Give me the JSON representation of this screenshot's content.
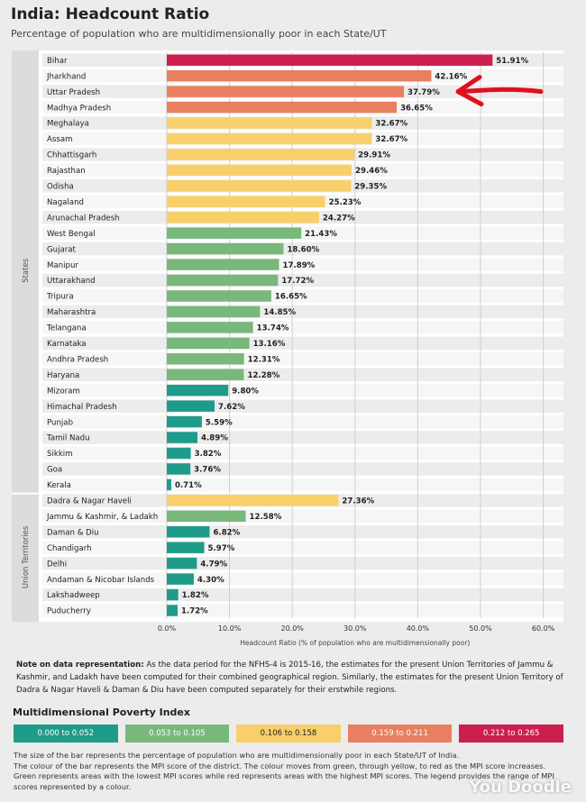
{
  "header": {
    "title": "India: Headcount Ratio",
    "subtitle": "Percentage of population who are multidimensionally poor in each State/UT"
  },
  "chart_data": {
    "type": "bar",
    "orientation": "horizontal",
    "groups": [
      "States",
      "Union Territories"
    ],
    "categories": [
      "Bihar",
      "Jharkhand",
      "Uttar Pradesh",
      "Madhya Pradesh",
      "Meghalaya",
      "Assam",
      "Chhattisgarh",
      "Rajasthan",
      "Odisha",
      "Nagaland",
      "Arunachal Pradesh",
      "West Bengal",
      "Gujarat",
      "Manipur",
      "Uttarakhand",
      "Tripura",
      "Maharashtra",
      "Telangana",
      "Karnataka",
      "Andhra Pradesh",
      "Haryana",
      "Mizoram",
      "Himachal Pradesh",
      "Punjab",
      "Tamil Nadu",
      "Sikkim",
      "Goa",
      "Kerala",
      "Dadra & Nagar Haveli",
      "Jammu & Kashmir, & Ladakh",
      "Daman & Diu",
      "Chandigarh",
      "Delhi",
      "Andaman & Nicobar Islands",
      "Lakshadweep",
      "Puducherry"
    ],
    "group_of": [
      "States",
      "States",
      "States",
      "States",
      "States",
      "States",
      "States",
      "States",
      "States",
      "States",
      "States",
      "States",
      "States",
      "States",
      "States",
      "States",
      "States",
      "States",
      "States",
      "States",
      "States",
      "States",
      "States",
      "States",
      "States",
      "States",
      "States",
      "States",
      "Union Territories",
      "Union Territories",
      "Union Territories",
      "Union Territories",
      "Union Territories",
      "Union Territories",
      "Union Territories",
      "Union Territories"
    ],
    "values": [
      51.91,
      42.16,
      37.79,
      36.65,
      32.67,
      32.67,
      29.91,
      29.46,
      29.35,
      25.23,
      24.27,
      21.43,
      18.6,
      17.89,
      17.72,
      16.65,
      14.85,
      13.74,
      13.16,
      12.31,
      12.28,
      9.8,
      7.62,
      5.59,
      4.89,
      3.82,
      3.76,
      0.71,
      27.36,
      12.58,
      6.82,
      5.97,
      4.79,
      4.3,
      1.82,
      1.72
    ],
    "labels": [
      "51.91%",
      "42.16%",
      "37.79%",
      "36.65%",
      "32.67%",
      "32.67%",
      "29.91%",
      "29.46%",
      "29.35%",
      "25.23%",
      "24.27%",
      "21.43%",
      "18.60%",
      "17.89%",
      "17.72%",
      "16.65%",
      "14.85%",
      "13.74%",
      "13.16%",
      "12.31%",
      "12.28%",
      "9.80%",
      "7.62%",
      "5.59%",
      "4.89%",
      "3.82%",
      "3.76%",
      "0.71%",
      "27.36%",
      "12.58%",
      "6.82%",
      "5.97%",
      "4.79%",
      "4.30%",
      "1.82%",
      "1.72%"
    ],
    "mpi_class": [
      4,
      3,
      3,
      3,
      2,
      2,
      2,
      2,
      2,
      2,
      2,
      1,
      1,
      1,
      1,
      1,
      1,
      1,
      1,
      1,
      1,
      0,
      0,
      0,
      0,
      0,
      0,
      0,
      2,
      1,
      0,
      0,
      0,
      0,
      0,
      0
    ],
    "xlim": [
      0,
      60
    ],
    "xticks": [
      "0.0%",
      "10.0%",
      "20.0%",
      "30.0%",
      "40.0%",
      "50.0%",
      "60.0%"
    ],
    "xlabel": "Headcount Ratio (% of population who are multidimensionally poor)",
    "annotation": "red hand-drawn arrow pointing at Uttar Pradesh",
    "annotation_color": "#e0101e"
  },
  "note": {
    "bold": "Note on data representation:",
    "text": " As the data period for the NFHS-4 is 2015-16, the estimates for the present Union Territories of Jammu & Kashmir, and Ladakh have been computed for their combined geographical region. Similarly, the estimates for the present Union Territory of Dadra & Nagar Haveli & Daman & Diu have been computed separately for their erstwhile regions."
  },
  "legend": {
    "title": "Multidimensional Poverty Index",
    "items": [
      {
        "label": "0.000 to 0.052",
        "color": "#1f9b8a"
      },
      {
        "label": "0.053 to 0.105",
        "color": "#79b87b"
      },
      {
        "label": "0.106 to 0.158",
        "color": "#f9cf6b"
      },
      {
        "label": "0.159 to 0.211",
        "color": "#e87f60"
      },
      {
        "label": "0.212 to 0.265",
        "color": "#cc1f4f"
      }
    ]
  },
  "footer": {
    "lines": [
      "The size of the bar represents the percentage of population who are multidimensionally poor in each State/UT of India.",
      "The colour of the bar represents the MPI score of the district. The colour moves from green, through yellow, to red as the MPI score increases.",
      "Green represents areas with the lowest MPI scores while red represents areas with the highest MPI scores. The legend provides the range of MPI",
      "scores represented by a colour."
    ]
  },
  "watermark": "You Doodle"
}
